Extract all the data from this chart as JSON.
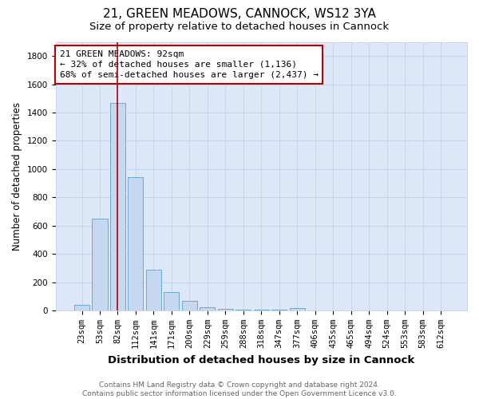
{
  "title": "21, GREEN MEADOWS, CANNOCK, WS12 3YA",
  "subtitle": "Size of property relative to detached houses in Cannock",
  "xlabel": "Distribution of detached houses by size in Cannock",
  "ylabel": "Number of detached properties",
  "bin_labels": [
    "23sqm",
    "53sqm",
    "82sqm",
    "112sqm",
    "141sqm",
    "171sqm",
    "200sqm",
    "229sqm",
    "259sqm",
    "288sqm",
    "318sqm",
    "347sqm",
    "377sqm",
    "406sqm",
    "435sqm",
    "465sqm",
    "494sqm",
    "524sqm",
    "553sqm",
    "583sqm",
    "612sqm"
  ],
  "bar_values": [
    40,
    650,
    1470,
    940,
    290,
    130,
    65,
    25,
    12,
    5,
    5,
    3,
    18,
    0,
    0,
    0,
    0,
    0,
    0,
    0,
    0
  ],
  "bar_color": "#c5d8ef",
  "bar_edgecolor": "#6fa8d4",
  "grid_color": "#c8d4e8",
  "plot_bg_color": "#dde8f8",
  "figure_bg_color": "#ffffff",
  "vline_x": 2,
  "vline_color": "#aa0000",
  "annotation_text": "21 GREEN MEADOWS: 92sqm\n← 32% of detached houses are smaller (1,136)\n68% of semi-detached houses are larger (2,437) →",
  "annotation_box_color": "#ffffff",
  "annotation_box_edgecolor": "#bb0000",
  "footer": "Contains HM Land Registry data © Crown copyright and database right 2024.\nContains public sector information licensed under the Open Government Licence v3.0.",
  "ylim": [
    0,
    1900
  ],
  "yticks": [
    0,
    200,
    400,
    600,
    800,
    1000,
    1200,
    1400,
    1600,
    1800
  ],
  "title_fontsize": 11,
  "subtitle_fontsize": 9.5,
  "xlabel_fontsize": 9.5,
  "ylabel_fontsize": 8.5,
  "tick_fontsize": 7.5,
  "footer_fontsize": 6.5,
  "annot_fontsize": 8.0
}
